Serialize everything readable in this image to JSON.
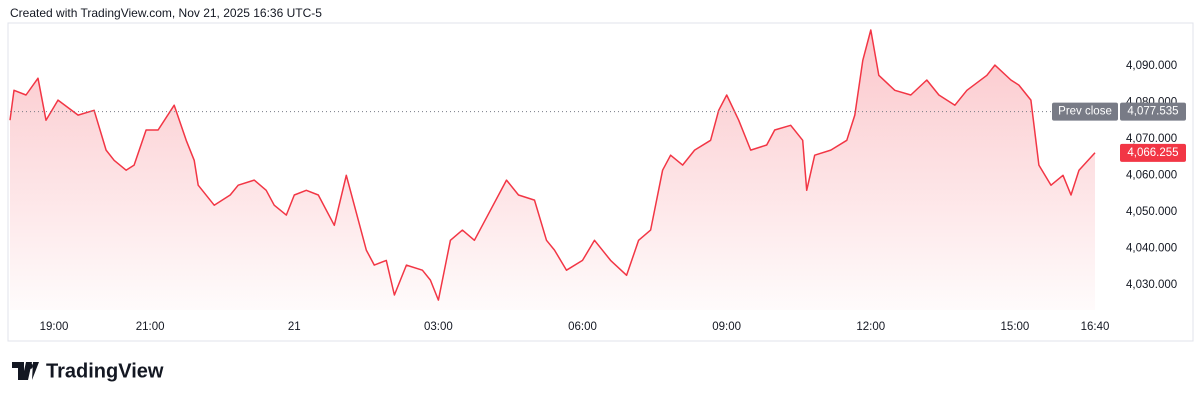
{
  "header": "Created with TradingView.com, Nov 21, 2025 16:36 UTC-5",
  "footer": "TradingView",
  "chart_data": {
    "type": "area",
    "x": [
      "18:05",
      "18:10",
      "18:25",
      "18:40",
      "18:50",
      "19:05",
      "19:30",
      "19:50",
      "20:05",
      "20:15",
      "20:30",
      "20:40",
      "20:55",
      "21:10",
      "21:30",
      "21:45",
      "21:55",
      "22:00",
      "22:20",
      "22:40",
      "22:50",
      "23:10",
      "23:25",
      "23:35",
      "23:50",
      "00:00",
      "00:15",
      "00:30",
      "00:50",
      "01:05",
      "01:15",
      "01:30",
      "01:40",
      "01:55",
      "02:05",
      "02:20",
      "02:40",
      "02:50",
      "03:00",
      "03:15",
      "03:30",
      "03:45",
      "04:05",
      "04:25",
      "04:40",
      "05:00",
      "05:15",
      "05:25",
      "05:40",
      "06:00",
      "06:15",
      "06:35",
      "06:55",
      "07:10",
      "07:25",
      "07:40",
      "07:50",
      "08:05",
      "08:20",
      "08:40",
      "08:50",
      "09:00",
      "09:15",
      "09:30",
      "09:50",
      "10:00",
      "10:20",
      "10:35",
      "10:40",
      "10:50",
      "11:10",
      "11:30",
      "11:40",
      "11:50",
      "12:00",
      "12:10",
      "12:30",
      "12:50",
      "13:10",
      "13:25",
      "13:45",
      "14:00",
      "14:25",
      "14:35",
      "14:55",
      "15:05",
      "15:20",
      "15:30",
      "15:45",
      "16:00",
      "16:10",
      "16:20",
      "16:40"
    ],
    "series": [
      {
        "color": "#f23645",
        "values": [
          4075.2,
          4083.4,
          4082.1,
          4086.7,
          4075.2,
          4080.7,
          4076.6,
          4077.9,
          4067.0,
          4064.2,
          4061.5,
          4062.9,
          4072.5,
          4072.5,
          4079.3,
          4069.7,
          4064.2,
          4057.4,
          4051.9,
          4054.7,
          4057.4,
          4058.8,
          4056.0,
          4051.9,
          4049.2,
          4054.7,
          4056.0,
          4054.7,
          4046.4,
          4060.1,
          4051.9,
          4039.6,
          4035.5,
          4036.8,
          4027.3,
          4035.5,
          4034.1,
          4031.4,
          4025.9,
          4042.3,
          4045.1,
          4042.3,
          4050.5,
          4058.8,
          4054.7,
          4053.3,
          4042.3,
          4039.6,
          4034.1,
          4036.8,
          4042.3,
          4036.8,
          4032.7,
          4042.3,
          4045.1,
          4061.5,
          4065.6,
          4062.9,
          4067.0,
          4069.7,
          4077.9,
          4082.1,
          4075.2,
          4067.0,
          4068.4,
          4072.5,
          4073.8,
          4069.7,
          4056.0,
          4065.6,
          4067.0,
          4069.7,
          4076.6,
          4091.6,
          4099.9,
          4087.5,
          4083.4,
          4082.1,
          4086.2,
          4082.1,
          4079.3,
          4083.4,
          4087.5,
          4090.3,
          4086.2,
          4084.8,
          4080.7,
          4062.9,
          4057.4,
          4060.1,
          4054.7,
          4061.5,
          4066.255
        ]
      }
    ],
    "xlim": [
      "18:05",
      "16:40"
    ],
    "xticks": [
      {
        "value": "19:00",
        "label": "19:00"
      },
      {
        "value": "21:00",
        "label": "21:00"
      },
      {
        "value": "00:00",
        "label": "21"
      },
      {
        "value": "03:00",
        "label": "03:00"
      },
      {
        "value": "06:00",
        "label": "06:00"
      },
      {
        "value": "09:00",
        "label": "09:00"
      },
      {
        "value": "12:00",
        "label": "12:00"
      },
      {
        "value": "15:00",
        "label": "15:00"
      },
      {
        "value": "16:40",
        "label": "16:40"
      }
    ],
    "ylim": [
      4023.2,
      4102.1
    ],
    "yticks": [
      {
        "value": 4030,
        "label": "4,030.000"
      },
      {
        "value": 4040,
        "label": "4,040.000"
      },
      {
        "value": 4050,
        "label": "4,050.000"
      },
      {
        "value": 4060,
        "label": "4,060.000"
      },
      {
        "value": 4070,
        "label": "4,070.000"
      },
      {
        "value": 4080,
        "label": "4,080.000"
      },
      {
        "value": 4090,
        "label": "4,090.000"
      }
    ],
    "prev_close": {
      "name": "Prev close",
      "value": 4077.535,
      "label": "4,077.535",
      "color": "#787b86"
    },
    "last_value": {
      "value": 4066.255,
      "label": "4,066.255",
      "color": "#f23645"
    }
  }
}
